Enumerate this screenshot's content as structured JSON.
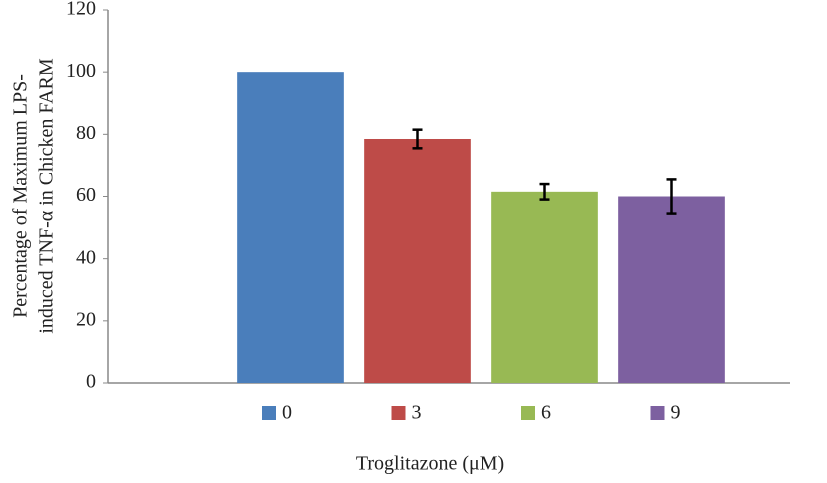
{
  "chart_data": {
    "type": "bar",
    "y_label": [
      "Percentage of Maximum LPS-",
      "induced TNF-α in Chicken FARM"
    ],
    "x_label": "Troglitazone (μM)",
    "categories": [
      "0",
      "3",
      "6",
      "9"
    ],
    "values": [
      100,
      78.5,
      61.5,
      60
    ],
    "errors": [
      null,
      3,
      2.5,
      5.5
    ],
    "colors": [
      "#4a7ebb",
      "#be4b48",
      "#98b954",
      "#7d60a0"
    ],
    "ylim": [
      0,
      120
    ],
    "yticks": [
      0,
      20,
      40,
      60,
      80,
      100,
      120
    ],
    "grid": false,
    "legend": "bottom"
  }
}
